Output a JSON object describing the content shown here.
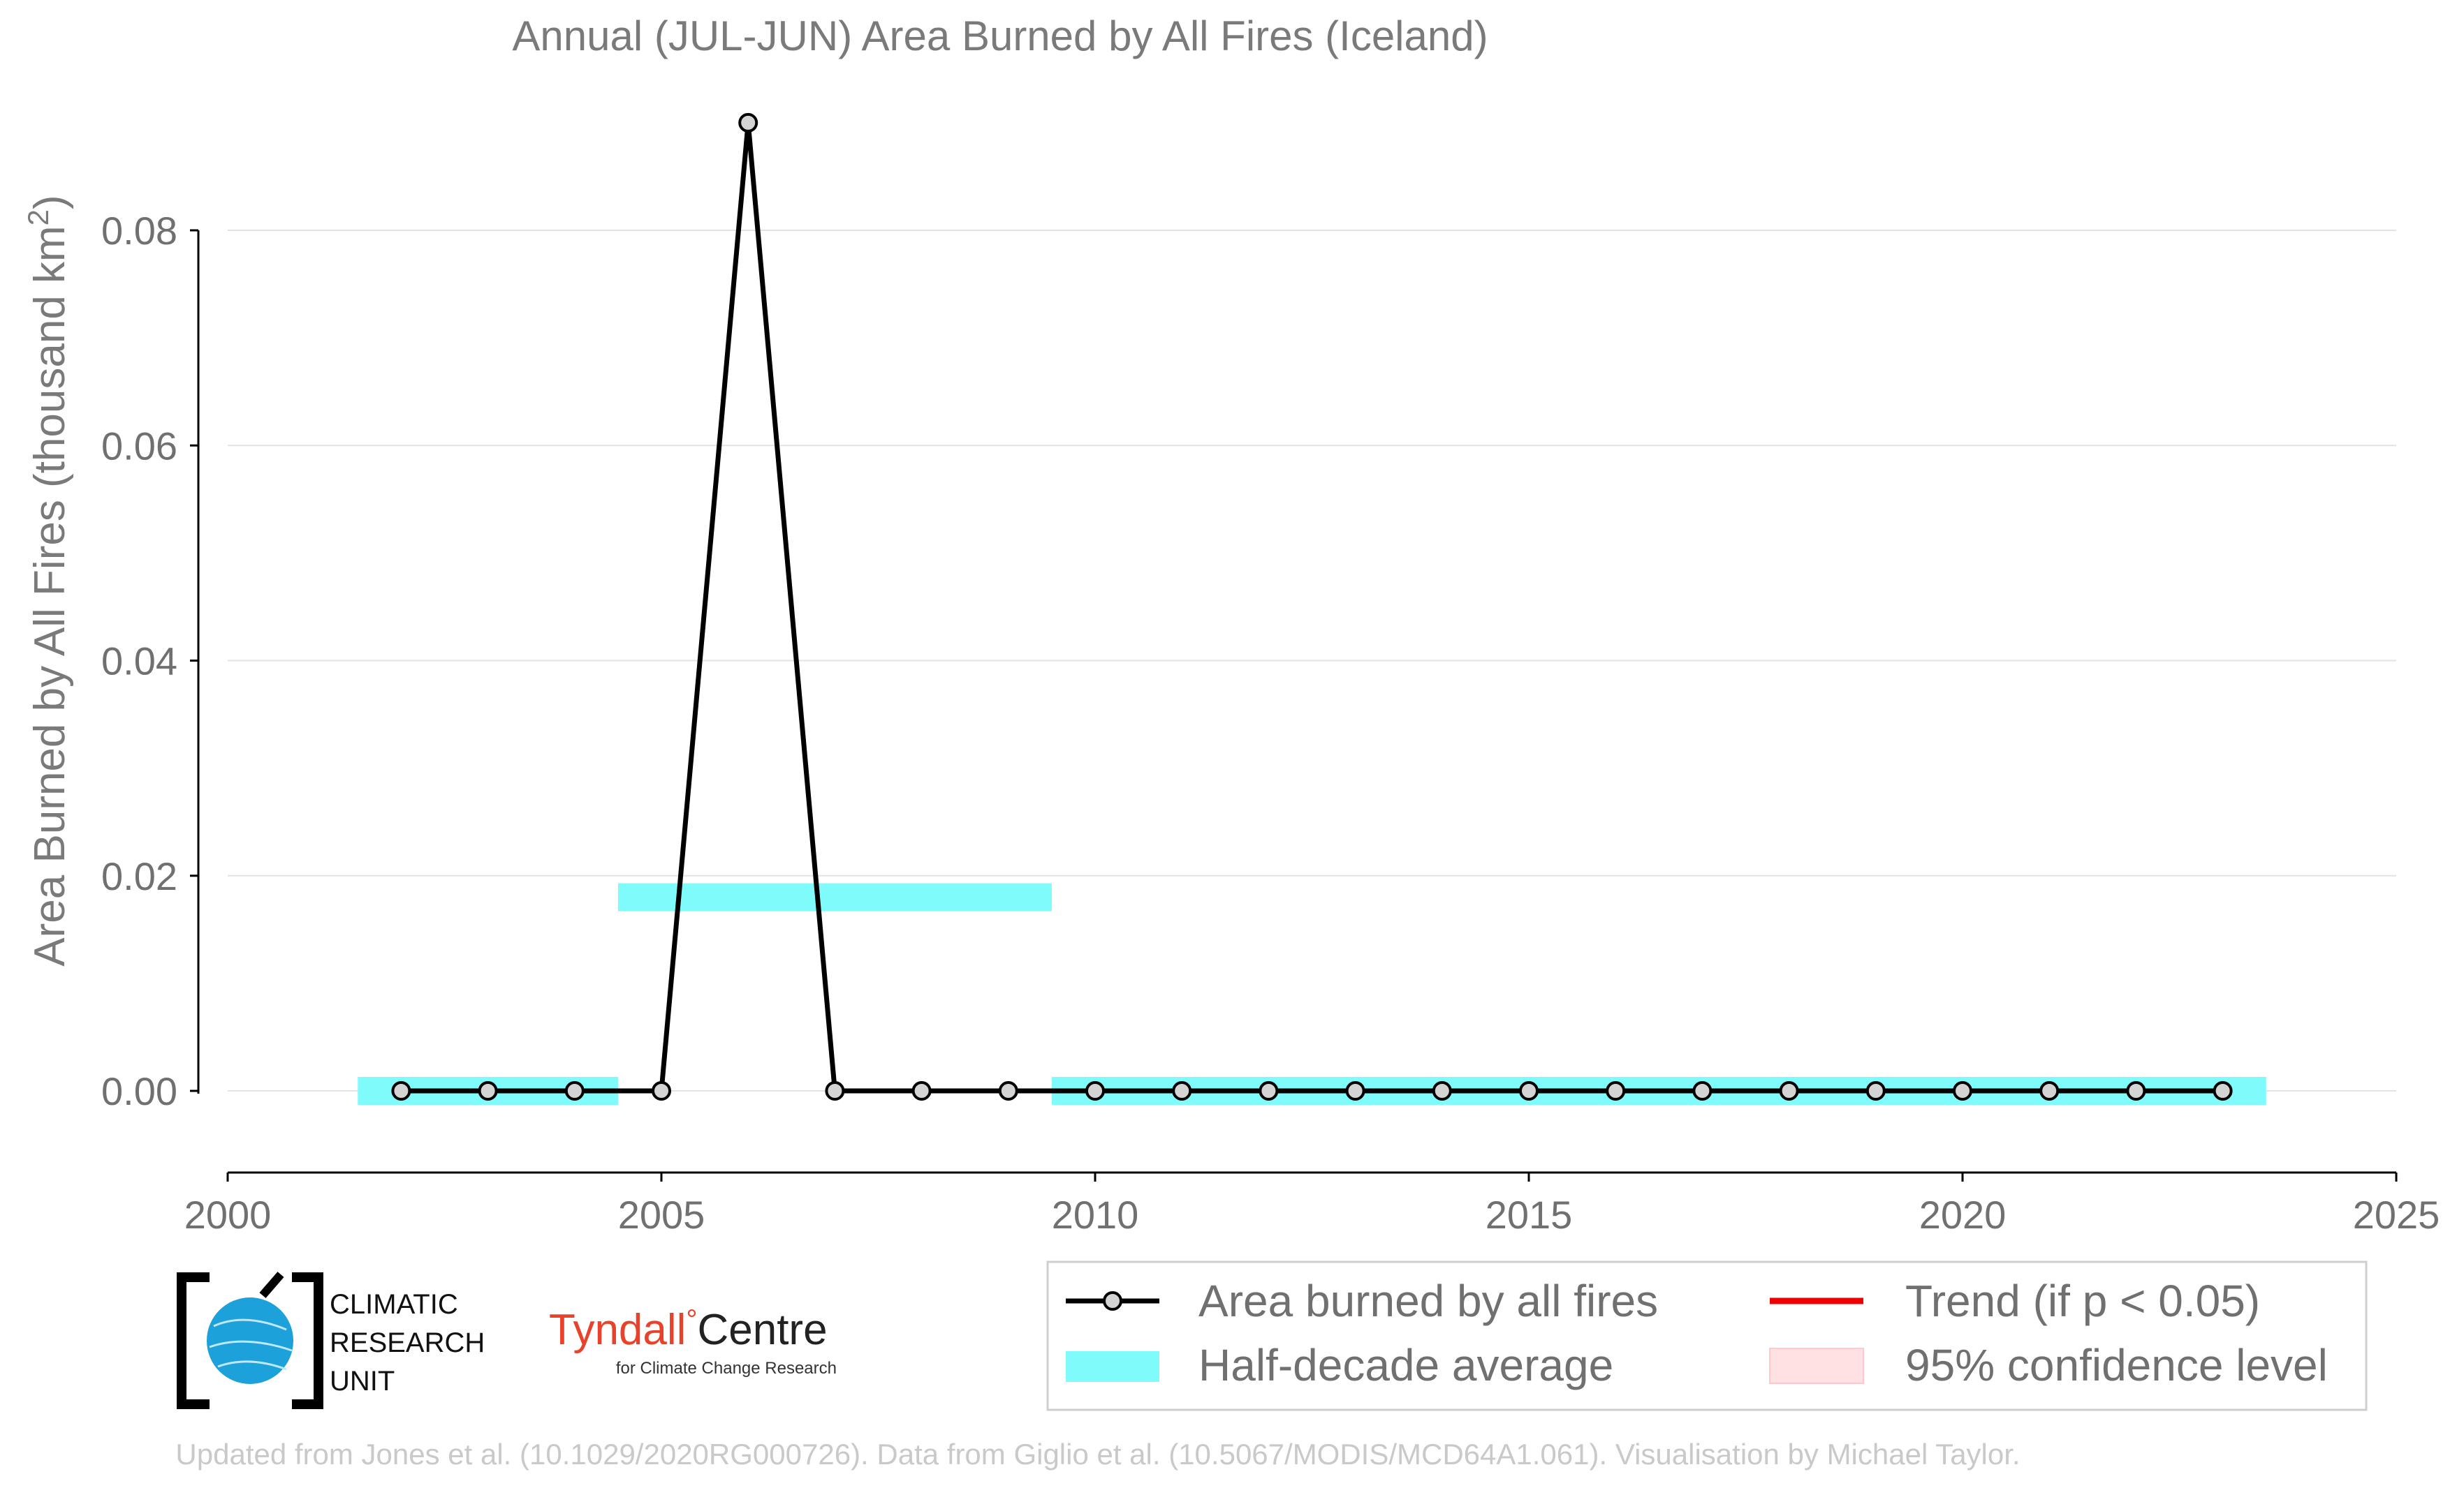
{
  "chart_data": {
    "type": "line",
    "title": "Annual (JUL-JUN) Area Burned by All Fires (Iceland)",
    "ylabel": "Area Burned by All Fires (thousand km²)",
    "xlim": [
      2000,
      2025
    ],
    "ylim": [
      -0.0072,
      0.091
    ],
    "xticks": [
      "2000",
      "2005",
      "2010",
      "2015",
      "2020",
      "2025"
    ],
    "yticks": [
      "0.00",
      "0.02",
      "0.04",
      "0.06",
      "0.08"
    ],
    "grid": true,
    "series": [
      {
        "name": "Area burned by all fires",
        "color": "#000000",
        "x": [
          2002,
          2003,
          2004,
          2005,
          2006,
          2007,
          2008,
          2009,
          2010,
          2011,
          2012,
          2013,
          2014,
          2015,
          2016,
          2017,
          2018,
          2019,
          2020,
          2021,
          2022,
          2023
        ],
        "y": [
          0,
          0,
          0,
          0,
          0.09,
          0,
          0,
          0,
          0,
          0,
          0,
          0,
          0,
          0,
          0,
          0,
          0,
          0,
          0,
          0,
          0,
          0
        ]
      }
    ],
    "half_decade_average": {
      "name": "Half-decade average",
      "color": "#7ffbfb",
      "segments": [
        {
          "x_start": 2001.5,
          "x_end": 2004.5,
          "value": 0
        },
        {
          "x_start": 2004.5,
          "x_end": 2009.5,
          "value": 0.018
        },
        {
          "x_start": 2009.5,
          "x_end": 2023.5,
          "value": 0
        }
      ]
    },
    "legend": {
      "placement": "bottom-right",
      "entries": [
        {
          "label": "Area burned by all fires",
          "color": "#000000"
        },
        {
          "label": "Trend (if p < 0.05)",
          "color": "#ee0000"
        },
        {
          "label": "Half-decade average",
          "color": "#7ffbfb"
        },
        {
          "label": "95% confidence level",
          "color": "#ffe0e3"
        }
      ]
    }
  },
  "logos": {
    "cru_lines": [
      "CLIMATIC",
      "RESEARCH",
      "UNIT"
    ],
    "tyndall_main": "Tyndall",
    "tyndall_degree": "°",
    "tyndall_centre": "Centre",
    "tyndall_sub": "for Climate Change Research"
  },
  "footer": "Updated from Jones et al. (10.1029/2020RG000726). Data from Giglio et al. (10.5067/MODIS/MCD64A1.061). Visualisation by Michael Taylor."
}
